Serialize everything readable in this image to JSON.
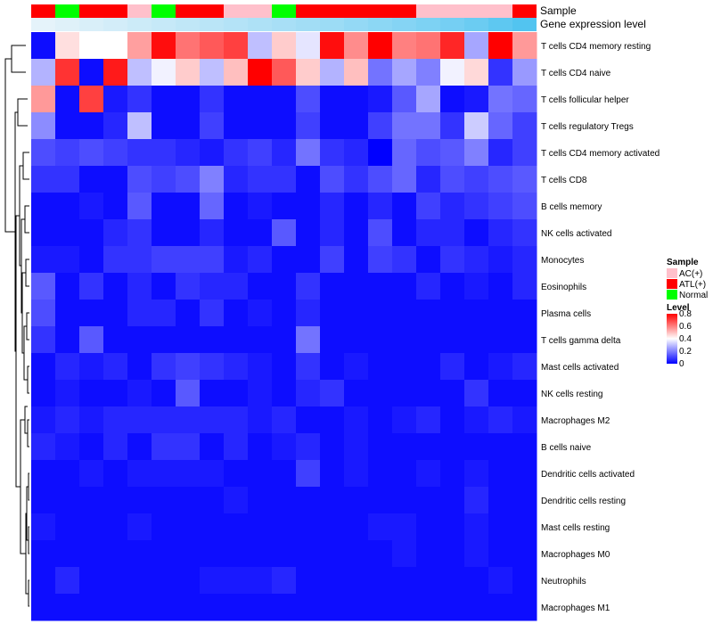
{
  "chart_data": {
    "type": "heatmap",
    "annotation_tracks": [
      {
        "name": "Sample",
        "label": "Sample"
      },
      {
        "name": "Gene expression level",
        "label": "Gene expression level"
      }
    ],
    "sample_groups": [
      "ATL(+)",
      "Normal",
      "ATL(+)",
      "ATL(+)",
      "AC(+)",
      "Normal",
      "ATL(+)",
      "ATL(+)",
      "AC(+)",
      "AC(+)",
      "Normal",
      "ATL(+)",
      "ATL(+)",
      "ATL(+)",
      "ATL(+)",
      "ATL(+)",
      "AC(+)",
      "AC(+)",
      "AC(+)",
      "AC(+)",
      "ATL(+)"
    ],
    "gene_expression_level": [
      0.02,
      0.06,
      0.1,
      0.14,
      0.18,
      0.22,
      0.26,
      0.3,
      0.34,
      0.38,
      0.42,
      0.46,
      0.5,
      0.55,
      0.6,
      0.65,
      0.7,
      0.75,
      0.82,
      0.9,
      0.98
    ],
    "rows": [
      "T cells CD4 memory resting",
      "T cells CD4 naive",
      "T cells follicular helper",
      "T cells regulatory  Tregs",
      "T cells CD4 memory activated",
      "T cells CD8",
      "B cells memory",
      "NK cells activated",
      "Monocytes",
      "Eosinophils",
      "Plasma cells",
      "T cells gamma delta",
      "Mast cells activated",
      "NK cells resting",
      "Macrophages M2",
      "B cells naive",
      "Dendritic cells activated",
      "Dendritic cells resting",
      "Mast cells resting",
      "Macrophages M0",
      "Neutrophils",
      "Macrophages M1"
    ],
    "values": [
      [
        0.02,
        0.45,
        0.4,
        0.4,
        0.55,
        0.78,
        0.62,
        0.66,
        0.7,
        0.3,
        0.48,
        0.36,
        0.78,
        0.58,
        0.8,
        0.6,
        0.62,
        0.74,
        0.26,
        0.82,
        0.56
      ],
      [
        0.28,
        0.72,
        0.02,
        0.76,
        0.3,
        0.38,
        0.48,
        0.3,
        0.5,
        0.8,
        0.66,
        0.48,
        0.28,
        0.5,
        0.18,
        0.26,
        0.2,
        0.38,
        0.46,
        0.08,
        0.24
      ],
      [
        0.56,
        0.02,
        0.7,
        0.04,
        0.08,
        0.02,
        0.02,
        0.08,
        0.02,
        0.02,
        0.02,
        0.12,
        0.02,
        0.02,
        0.04,
        0.14,
        0.26,
        0.02,
        0.04,
        0.18,
        0.16
      ],
      [
        0.22,
        0.02,
        0.02,
        0.06,
        0.3,
        0.02,
        0.02,
        0.1,
        0.02,
        0.02,
        0.02,
        0.1,
        0.02,
        0.02,
        0.1,
        0.18,
        0.18,
        0.08,
        0.32,
        0.16,
        0.1
      ],
      [
        0.12,
        0.1,
        0.12,
        0.1,
        0.08,
        0.08,
        0.06,
        0.04,
        0.08,
        0.1,
        0.06,
        0.18,
        0.08,
        0.06,
        0.0,
        0.16,
        0.12,
        0.14,
        0.2,
        0.06,
        0.1
      ],
      [
        0.08,
        0.08,
        0.02,
        0.02,
        0.12,
        0.1,
        0.12,
        0.2,
        0.06,
        0.08,
        0.08,
        0.02,
        0.12,
        0.08,
        0.12,
        0.16,
        0.06,
        0.12,
        0.1,
        0.12,
        0.14
      ],
      [
        0.02,
        0.02,
        0.04,
        0.02,
        0.14,
        0.02,
        0.02,
        0.16,
        0.02,
        0.04,
        0.02,
        0.02,
        0.06,
        0.02,
        0.06,
        0.02,
        0.1,
        0.06,
        0.08,
        0.1,
        0.12
      ],
      [
        0.02,
        0.02,
        0.02,
        0.06,
        0.08,
        0.02,
        0.02,
        0.06,
        0.02,
        0.02,
        0.14,
        0.02,
        0.06,
        0.02,
        0.12,
        0.02,
        0.06,
        0.06,
        0.02,
        0.06,
        0.08
      ],
      [
        0.04,
        0.04,
        0.02,
        0.08,
        0.08,
        0.1,
        0.1,
        0.1,
        0.04,
        0.06,
        0.02,
        0.02,
        0.1,
        0.02,
        0.1,
        0.08,
        0.02,
        0.08,
        0.06,
        0.04,
        0.06
      ],
      [
        0.14,
        0.02,
        0.08,
        0.02,
        0.06,
        0.02,
        0.08,
        0.06,
        0.06,
        0.02,
        0.02,
        0.08,
        0.02,
        0.02,
        0.02,
        0.02,
        0.06,
        0.02,
        0.04,
        0.02,
        0.06
      ],
      [
        0.12,
        0.02,
        0.02,
        0.02,
        0.06,
        0.06,
        0.02,
        0.08,
        0.02,
        0.04,
        0.02,
        0.06,
        0.02,
        0.02,
        0.02,
        0.02,
        0.02,
        0.02,
        0.02,
        0.02,
        0.02
      ],
      [
        0.08,
        0.02,
        0.14,
        0.02,
        0.02,
        0.02,
        0.02,
        0.02,
        0.02,
        0.02,
        0.02,
        0.18,
        0.02,
        0.02,
        0.02,
        0.02,
        0.02,
        0.02,
        0.02,
        0.02,
        0.02
      ],
      [
        0.02,
        0.06,
        0.04,
        0.06,
        0.02,
        0.08,
        0.1,
        0.08,
        0.06,
        0.04,
        0.02,
        0.08,
        0.02,
        0.04,
        0.02,
        0.02,
        0.02,
        0.06,
        0.02,
        0.04,
        0.06
      ],
      [
        0.02,
        0.04,
        0.02,
        0.02,
        0.04,
        0.02,
        0.14,
        0.02,
        0.02,
        0.04,
        0.02,
        0.06,
        0.08,
        0.02,
        0.02,
        0.02,
        0.02,
        0.02,
        0.08,
        0.02,
        0.02
      ],
      [
        0.04,
        0.06,
        0.04,
        0.06,
        0.06,
        0.06,
        0.06,
        0.06,
        0.06,
        0.04,
        0.06,
        0.02,
        0.02,
        0.04,
        0.02,
        0.04,
        0.06,
        0.02,
        0.04,
        0.06,
        0.04
      ],
      [
        0.06,
        0.04,
        0.02,
        0.06,
        0.02,
        0.08,
        0.08,
        0.02,
        0.06,
        0.02,
        0.04,
        0.06,
        0.02,
        0.04,
        0.02,
        0.02,
        0.02,
        0.02,
        0.02,
        0.02,
        0.02
      ],
      [
        0.02,
        0.02,
        0.04,
        0.02,
        0.04,
        0.04,
        0.04,
        0.04,
        0.02,
        0.02,
        0.02,
        0.1,
        0.02,
        0.04,
        0.02,
        0.02,
        0.04,
        0.02,
        0.04,
        0.02,
        0.02
      ],
      [
        0.02,
        0.02,
        0.02,
        0.02,
        0.02,
        0.02,
        0.02,
        0.02,
        0.04,
        0.02,
        0.02,
        0.02,
        0.02,
        0.02,
        0.02,
        0.02,
        0.02,
        0.02,
        0.06,
        0.02,
        0.02
      ],
      [
        0.04,
        0.02,
        0.02,
        0.02,
        0.04,
        0.02,
        0.02,
        0.02,
        0.02,
        0.02,
        0.02,
        0.02,
        0.02,
        0.02,
        0.04,
        0.04,
        0.02,
        0.02,
        0.04,
        0.02,
        0.02
      ],
      [
        0.02,
        0.02,
        0.02,
        0.02,
        0.02,
        0.02,
        0.02,
        0.02,
        0.02,
        0.02,
        0.02,
        0.02,
        0.02,
        0.02,
        0.02,
        0.04,
        0.02,
        0.02,
        0.04,
        0.02,
        0.02
      ],
      [
        0.02,
        0.06,
        0.02,
        0.02,
        0.02,
        0.02,
        0.02,
        0.04,
        0.04,
        0.04,
        0.06,
        0.02,
        0.02,
        0.02,
        0.02,
        0.02,
        0.02,
        0.02,
        0.02,
        0.04,
        0.02
      ],
      [
        0.02,
        0.02,
        0.02,
        0.02,
        0.02,
        0.02,
        0.02,
        0.02,
        0.02,
        0.02,
        0.02,
        0.02,
        0.02,
        0.02,
        0.02,
        0.02,
        0.02,
        0.02,
        0.02,
        0.02,
        0.02
      ]
    ],
    "legend": {
      "sample": {
        "title": "Sample",
        "items": [
          {
            "label": "AC(+)",
            "color": "#FFC0CB"
          },
          {
            "label": "ATL(+)",
            "color": "#FF0000"
          },
          {
            "label": "Normal",
            "color": "#00FF00"
          }
        ]
      },
      "level": {
        "title": "Level",
        "ticks": [
          0.8,
          0.6,
          0.4,
          0.2,
          0
        ],
        "tick_labels": [
          "0.8",
          "0.6",
          "0.4",
          "0.2",
          "0"
        ],
        "range": [
          0,
          0.8
        ]
      }
    },
    "colors": {
      "low": "#0000FF",
      "mid": "#FFFFFF",
      "high": "#FF0000",
      "expr_low": "#E8F4FA",
      "expr_high": "#4FC3F0"
    }
  }
}
